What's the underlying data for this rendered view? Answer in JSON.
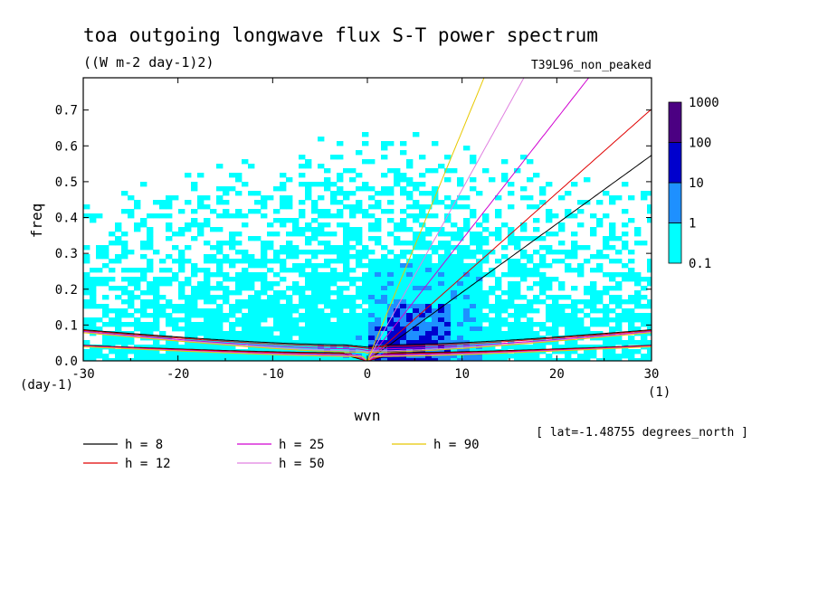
{
  "chart_data": {
    "type": "heatmap",
    "title": "toa outgoing longwave flux S-T power spectrum",
    "subtitle": "((W m-2 day-1)2)",
    "dataset": "T39L96_non_peaked",
    "annotation": "[ lat=-1.48755 degrees_north ]",
    "xlabel": "wvn",
    "ylabel": "freq",
    "xunits": "(1)",
    "yunits": "(day-1)",
    "xlim": [
      -30,
      30
    ],
    "ylim": [
      0,
      0.79
    ],
    "xticks": [
      -30,
      -20,
      -10,
      0,
      10,
      20,
      30
    ],
    "yticks": [
      0.0,
      0.1,
      0.2,
      0.3,
      0.4,
      0.5,
      0.6,
      0.7
    ],
    "colorbar": {
      "levels": [
        "0.1",
        "1",
        "10",
        "100",
        "1000"
      ],
      "colors": [
        "#00ffff",
        "#1e90ff",
        "#0000cd",
        "#4b0082"
      ]
    },
    "dispersion_curves": [
      {
        "label": "h =  8",
        "h": 8,
        "color": "#000000"
      },
      {
        "label": "h = 12",
        "h": 12,
        "color": "#e00000"
      },
      {
        "label": "h = 25",
        "h": 25,
        "color": "#d000d0"
      },
      {
        "label": "h = 50",
        "h": 50,
        "color": "#e080e0"
      },
      {
        "label": "h = 90",
        "h": 90,
        "color": "#e8c800"
      }
    ]
  }
}
